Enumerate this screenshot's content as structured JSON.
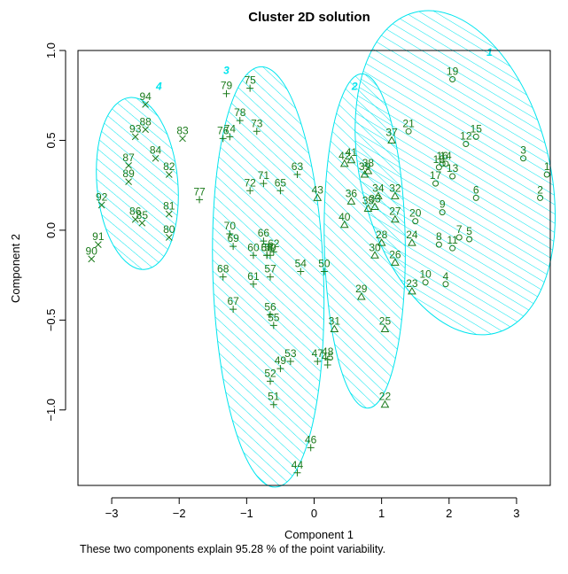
{
  "chart_data": {
    "type": "scatter",
    "title": "Cluster 2D solution",
    "xlabel": "Component 1",
    "ylabel": "Component 2",
    "caption": "These two components explain 95.28 % of the point variability.",
    "xlim": [
      -3.5,
      3.5
    ],
    "ylim": [
      -1.42,
      1.0
    ],
    "xticks": [
      -3,
      -2,
      -1,
      0,
      1,
      2,
      3
    ],
    "yticks": [
      -1.0,
      -0.5,
      0.0,
      0.5,
      1.0
    ],
    "ytick_labels": [
      "−1.0",
      "−0.5",
      "0.0",
      "0.5",
      "1.0"
    ],
    "xtick_labels": [
      "−3",
      "−2",
      "−1",
      "0",
      "1",
      "2",
      "3"
    ],
    "colors": {
      "ellipse": "#00e5ee",
      "points": "#1a7a1a"
    },
    "clusters": [
      {
        "id": "1",
        "marker": "circle",
        "label_at": [
          2.6,
          0.97
        ],
        "center": [
          2.09,
          0.32
        ],
        "rx": 1.4,
        "ry": 0.92,
        "angle": 14
      },
      {
        "id": "2",
        "marker": "triangle",
        "label_at": [
          0.6,
          0.78
        ],
        "center": [
          0.75,
          -0.06
        ],
        "rx": 0.6,
        "ry": 0.93,
        "angle": 1
      },
      {
        "id": "3",
        "marker": "plus",
        "label_at": [
          -1.3,
          0.87
        ],
        "center": [
          -0.68,
          -0.26
        ],
        "rx": 0.82,
        "ry": 1.17,
        "angle": 2
      },
      {
        "id": "4",
        "marker": "cross",
        "label_at": [
          -2.3,
          0.78
        ],
        "center": [
          -2.62,
          0.26
        ],
        "rx": 0.6,
        "ry": 0.48,
        "angle": 5
      }
    ],
    "points": [
      {
        "id": "1",
        "x": 3.45,
        "y": 0.31,
        "cluster": "1"
      },
      {
        "id": "2",
        "x": 3.35,
        "y": 0.18,
        "cluster": "1"
      },
      {
        "id": "3",
        "x": 3.1,
        "y": 0.4,
        "cluster": "1"
      },
      {
        "id": "4",
        "x": 1.95,
        "y": -0.3,
        "cluster": "1"
      },
      {
        "id": "5",
        "x": 2.3,
        "y": -0.05,
        "cluster": "1"
      },
      {
        "id": "6",
        "x": 2.4,
        "y": 0.18,
        "cluster": "1"
      },
      {
        "id": "7",
        "x": 2.15,
        "y": -0.04,
        "cluster": "1"
      },
      {
        "id": "8",
        "x": 1.85,
        "y": -0.08,
        "cluster": "1"
      },
      {
        "id": "9",
        "x": 1.9,
        "y": 0.1,
        "cluster": "1"
      },
      {
        "id": "10",
        "x": 1.65,
        "y": -0.29,
        "cluster": "1"
      },
      {
        "id": "11",
        "x": 2.05,
        "y": -0.1,
        "cluster": "1"
      },
      {
        "id": "12",
        "x": 2.25,
        "y": 0.48,
        "cluster": "1"
      },
      {
        "id": "13",
        "x": 2.05,
        "y": 0.3,
        "cluster": "1"
      },
      {
        "id": "14",
        "x": 1.95,
        "y": 0.37,
        "cluster": "1"
      },
      {
        "id": "15",
        "x": 2.4,
        "y": 0.52,
        "cluster": "1"
      },
      {
        "id": "16",
        "x": 1.9,
        "y": 0.37,
        "cluster": "1"
      },
      {
        "id": "17",
        "x": 1.8,
        "y": 0.26,
        "cluster": "1"
      },
      {
        "id": "18",
        "x": 1.85,
        "y": 0.35,
        "cluster": "1"
      },
      {
        "id": "19",
        "x": 2.05,
        "y": 0.84,
        "cluster": "1"
      },
      {
        "id": "20",
        "x": 1.5,
        "y": 0.05,
        "cluster": "1"
      },
      {
        "id": "21",
        "x": 1.4,
        "y": 0.55,
        "cluster": "1"
      },
      {
        "id": "22",
        "x": 1.05,
        "y": -0.97,
        "cluster": "2"
      },
      {
        "id": "23",
        "x": 1.45,
        "y": -0.34,
        "cluster": "2"
      },
      {
        "id": "24",
        "x": 1.45,
        "y": -0.07,
        "cluster": "2"
      },
      {
        "id": "25",
        "x": 1.05,
        "y": -0.55,
        "cluster": "2"
      },
      {
        "id": "26",
        "x": 1.2,
        "y": -0.18,
        "cluster": "2"
      },
      {
        "id": "27",
        "x": 1.2,
        "y": 0.06,
        "cluster": "2"
      },
      {
        "id": "28",
        "x": 1.0,
        "y": -0.07,
        "cluster": "2"
      },
      {
        "id": "29",
        "x": 0.7,
        "y": -0.37,
        "cluster": "2"
      },
      {
        "id": "30",
        "x": 0.9,
        "y": -0.14,
        "cluster": "2"
      },
      {
        "id": "31",
        "x": 0.3,
        "y": -0.55,
        "cluster": "2"
      },
      {
        "id": "32",
        "x": 1.2,
        "y": 0.19,
        "cluster": "2"
      },
      {
        "id": "33",
        "x": 0.9,
        "y": 0.13,
        "cluster": "2"
      },
      {
        "id": "34",
        "x": 0.95,
        "y": 0.19,
        "cluster": "2"
      },
      {
        "id": "35",
        "x": 0.8,
        "y": 0.12,
        "cluster": "2"
      },
      {
        "id": "36",
        "x": 0.55,
        "y": 0.16,
        "cluster": "2"
      },
      {
        "id": "37",
        "x": 1.15,
        "y": 0.5,
        "cluster": "2"
      },
      {
        "id": "38",
        "x": 0.8,
        "y": 0.33,
        "cluster": "2"
      },
      {
        "id": "39",
        "x": 0.75,
        "y": 0.31,
        "cluster": "2"
      },
      {
        "id": "40",
        "x": 0.45,
        "y": 0.03,
        "cluster": "2"
      },
      {
        "id": "41",
        "x": 0.55,
        "y": 0.39,
        "cluster": "2"
      },
      {
        "id": "42",
        "x": 0.45,
        "y": 0.37,
        "cluster": "2"
      },
      {
        "id": "43",
        "x": 0.05,
        "y": 0.18,
        "cluster": "2"
      },
      {
        "id": "44",
        "x": -0.25,
        "y": -1.35,
        "cluster": "3"
      },
      {
        "id": "45",
        "x": 0.2,
        "y": -0.75,
        "cluster": "3"
      },
      {
        "id": "46",
        "x": -0.05,
        "y": -1.21,
        "cluster": "3"
      },
      {
        "id": "47",
        "x": 0.05,
        "y": -0.73,
        "cluster": "3"
      },
      {
        "id": "48",
        "x": 0.2,
        "y": -0.72,
        "cluster": "3"
      },
      {
        "id": "49",
        "x": -0.5,
        "y": -0.77,
        "cluster": "3"
      },
      {
        "id": "50",
        "x": 0.15,
        "y": -0.23,
        "cluster": "3"
      },
      {
        "id": "51",
        "x": -0.6,
        "y": -0.97,
        "cluster": "3"
      },
      {
        "id": "52",
        "x": -0.65,
        "y": -0.84,
        "cluster": "3"
      },
      {
        "id": "53",
        "x": -0.35,
        "y": -0.73,
        "cluster": "3"
      },
      {
        "id": "54",
        "x": -0.2,
        "y": -0.23,
        "cluster": "3"
      },
      {
        "id": "55",
        "x": -0.6,
        "y": -0.53,
        "cluster": "3"
      },
      {
        "id": "56",
        "x": -0.65,
        "y": -0.47,
        "cluster": "3"
      },
      {
        "id": "57",
        "x": -0.65,
        "y": -0.26,
        "cluster": "3"
      },
      {
        "id": "58",
        "x": -0.7,
        "y": -0.14,
        "cluster": "3"
      },
      {
        "id": "59",
        "x": -0.65,
        "y": -0.14,
        "cluster": "3"
      },
      {
        "id": "60",
        "x": -0.9,
        "y": -0.14,
        "cluster": "3"
      },
      {
        "id": "61",
        "x": -0.9,
        "y": -0.3,
        "cluster": "3"
      },
      {
        "id": "62",
        "x": -0.6,
        "y": -0.12,
        "cluster": "3"
      },
      {
        "id": "63",
        "x": -0.25,
        "y": 0.31,
        "cluster": "3"
      },
      {
        "id": "64",
        "x": -0.7,
        "y": -0.14,
        "cluster": "3"
      },
      {
        "id": "65",
        "x": -0.5,
        "y": 0.22,
        "cluster": "3"
      },
      {
        "id": "66",
        "x": -0.75,
        "y": -0.06,
        "cluster": "3"
      },
      {
        "id": "67",
        "x": -1.2,
        "y": -0.44,
        "cluster": "3"
      },
      {
        "id": "68",
        "x": -1.35,
        "y": -0.26,
        "cluster": "3"
      },
      {
        "id": "69",
        "x": -1.2,
        "y": -0.09,
        "cluster": "3"
      },
      {
        "id": "70",
        "x": -1.25,
        "y": -0.02,
        "cluster": "3"
      },
      {
        "id": "71",
        "x": -0.75,
        "y": 0.26,
        "cluster": "3"
      },
      {
        "id": "72",
        "x": -0.95,
        "y": 0.22,
        "cluster": "3"
      },
      {
        "id": "73",
        "x": -0.85,
        "y": 0.55,
        "cluster": "3"
      },
      {
        "id": "74",
        "x": -1.25,
        "y": 0.52,
        "cluster": "3"
      },
      {
        "id": "75",
        "x": -0.95,
        "y": 0.79,
        "cluster": "3"
      },
      {
        "id": "76",
        "x": -1.35,
        "y": 0.51,
        "cluster": "3"
      },
      {
        "id": "77",
        "x": -1.7,
        "y": 0.17,
        "cluster": "3"
      },
      {
        "id": "78",
        "x": -1.1,
        "y": 0.61,
        "cluster": "3"
      },
      {
        "id": "79",
        "x": -1.3,
        "y": 0.76,
        "cluster": "3"
      },
      {
        "id": "80",
        "x": -2.15,
        "y": -0.04,
        "cluster": "4"
      },
      {
        "id": "81",
        "x": -2.15,
        "y": 0.09,
        "cluster": "4"
      },
      {
        "id": "82",
        "x": -2.15,
        "y": 0.31,
        "cluster": "4"
      },
      {
        "id": "83",
        "x": -1.95,
        "y": 0.51,
        "cluster": "4"
      },
      {
        "id": "84",
        "x": -2.35,
        "y": 0.4,
        "cluster": "4"
      },
      {
        "id": "85",
        "x": -2.55,
        "y": 0.04,
        "cluster": "4"
      },
      {
        "id": "86",
        "x": -2.65,
        "y": 0.06,
        "cluster": "4"
      },
      {
        "id": "87",
        "x": -2.75,
        "y": 0.36,
        "cluster": "4"
      },
      {
        "id": "88",
        "x": -2.5,
        "y": 0.56,
        "cluster": "4"
      },
      {
        "id": "89",
        "x": -2.75,
        "y": 0.27,
        "cluster": "4"
      },
      {
        "id": "90",
        "x": -3.3,
        "y": -0.16,
        "cluster": "4"
      },
      {
        "id": "91",
        "x": -3.2,
        "y": -0.08,
        "cluster": "4"
      },
      {
        "id": "92",
        "x": -3.15,
        "y": 0.14,
        "cluster": "4"
      },
      {
        "id": "93",
        "x": -2.65,
        "y": 0.52,
        "cluster": "4"
      },
      {
        "id": "94",
        "x": -2.5,
        "y": 0.7,
        "cluster": "4"
      }
    ]
  }
}
